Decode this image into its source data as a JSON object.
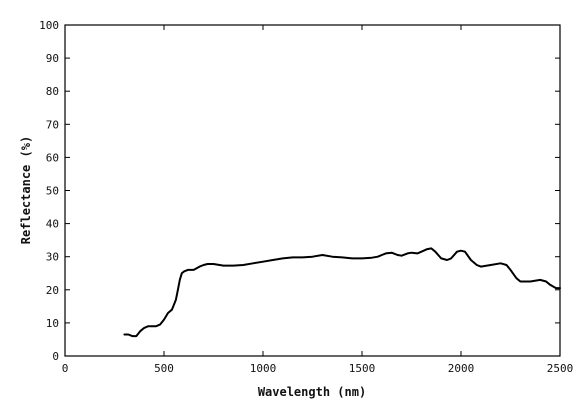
{
  "chart_data": {
    "type": "line",
    "title": "",
    "xlabel": "Wavelength (nm)",
    "ylabel": "Reflectance (%)",
    "xlim": [
      0,
      2500
    ],
    "ylim": [
      0,
      100
    ],
    "xticks": [
      0,
      500,
      1000,
      1500,
      2000,
      2500
    ],
    "yticks": [
      0,
      10,
      20,
      30,
      40,
      50,
      60,
      70,
      80,
      90,
      100
    ],
    "xtick_labels": [
      "0",
      "500",
      "1000",
      "1500",
      "2000",
      "2500"
    ],
    "ytick_labels": [
      "0",
      "10",
      "20",
      "30",
      "40",
      "50",
      "60",
      "70",
      "80",
      "90",
      "100"
    ],
    "grid": false,
    "legend": false,
    "line_color": "#000000",
    "series": [
      {
        "x": [
          300,
          320,
          340,
          360,
          380,
          400,
          420,
          440,
          460,
          480,
          500,
          520,
          540,
          560,
          570,
          580,
          590,
          600,
          620,
          650,
          680,
          700,
          720,
          750,
          800,
          850,
          900,
          950,
          1000,
          1050,
          1100,
          1150,
          1200,
          1250,
          1300,
          1350,
          1400,
          1450,
          1500,
          1550,
          1580,
          1600,
          1620,
          1650,
          1680,
          1700,
          1730,
          1750,
          1780,
          1800,
          1830,
          1850,
          1870,
          1900,
          1930,
          1950,
          1980,
          2000,
          2020,
          2050,
          2080,
          2100,
          2150,
          2200,
          2230,
          2250,
          2280,
          2300,
          2350,
          2400,
          2430,
          2450,
          2480,
          2500
        ],
        "y": [
          6.5,
          6.5,
          6.0,
          6.0,
          7.5,
          8.5,
          9.0,
          9.0,
          9.0,
          9.5,
          11.0,
          13.0,
          14.0,
          17.0,
          20.0,
          23.0,
          25.0,
          25.5,
          26.0,
          26.0,
          27.0,
          27.5,
          27.8,
          27.8,
          27.3,
          27.3,
          27.5,
          28.0,
          28.5,
          29.0,
          29.5,
          29.8,
          29.8,
          30.0,
          30.5,
          30.0,
          29.8,
          29.5,
          29.5,
          29.7,
          30.0,
          30.5,
          31.0,
          31.2,
          30.5,
          30.3,
          31.0,
          31.2,
          31.0,
          31.5,
          32.3,
          32.5,
          31.5,
          29.5,
          29.0,
          29.5,
          31.5,
          31.8,
          31.5,
          29.0,
          27.5,
          27.0,
          27.5,
          28.0,
          27.5,
          26.0,
          23.5,
          22.5,
          22.5,
          23.0,
          22.5,
          21.5,
          20.5,
          20.5
        ]
      }
    ]
  }
}
